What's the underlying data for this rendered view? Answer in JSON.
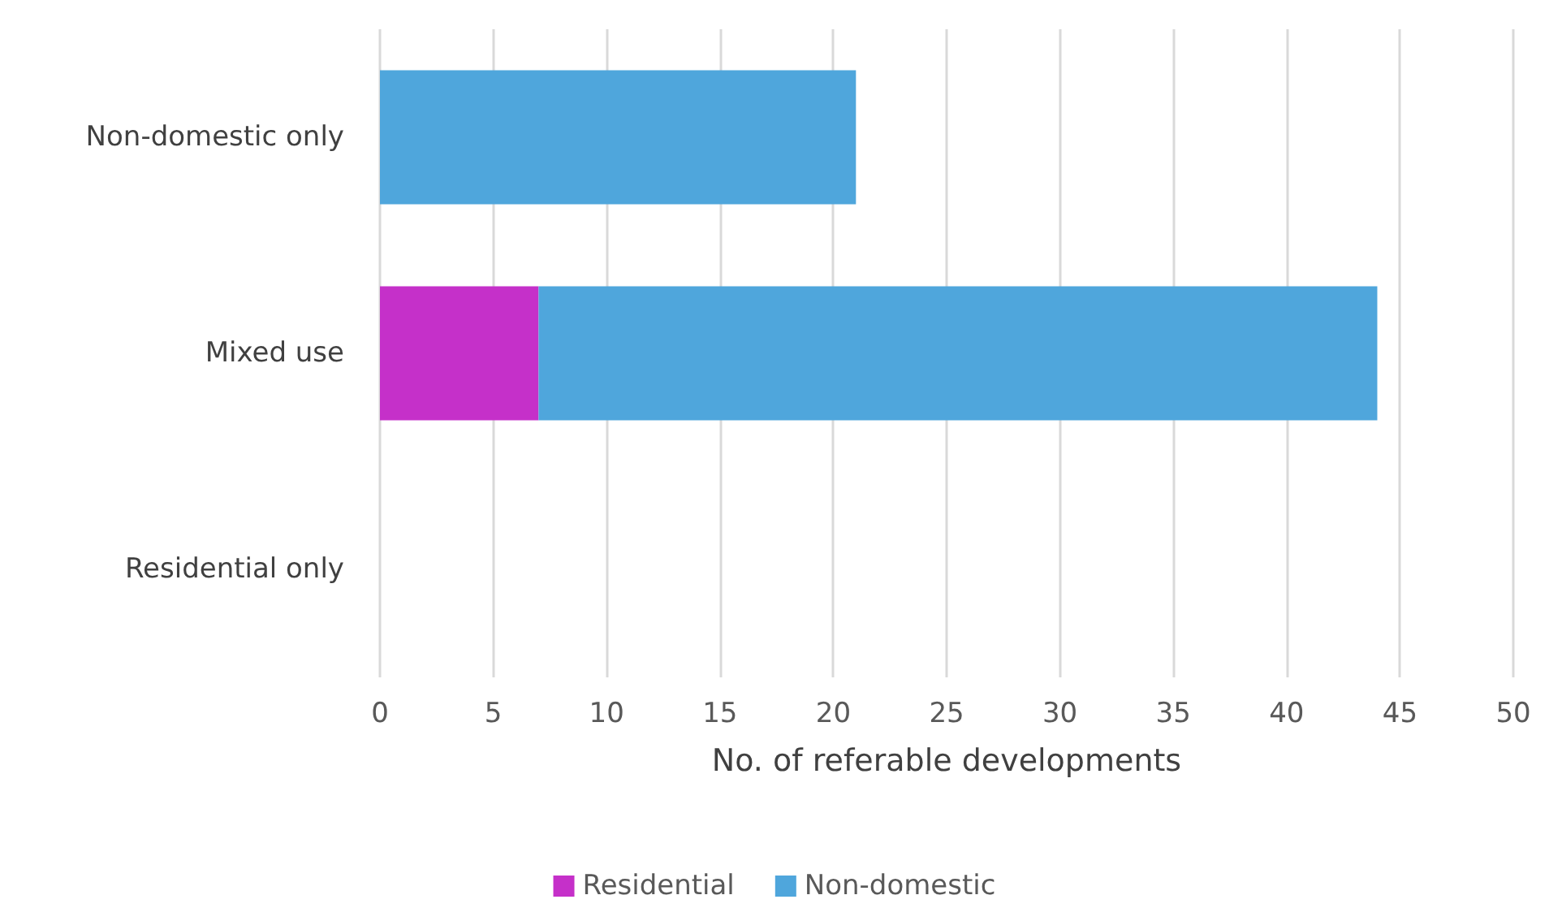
{
  "chart_data": {
    "type": "bar",
    "orientation": "horizontal",
    "stacked": true,
    "xlabel": "No. of referable developments",
    "categories": [
      "Non-domestic only",
      "Mixed use",
      "Residential only"
    ],
    "series": [
      {
        "name": "Residential",
        "color": "#c530c9",
        "values": [
          0,
          7,
          0
        ]
      },
      {
        "name": "Non-domestic",
        "color": "#4fa6dc",
        "values": [
          21,
          37,
          0
        ]
      }
    ],
    "xlim": [
      0,
      50
    ],
    "xticks": [
      0,
      5,
      10,
      15,
      20,
      25,
      30,
      35,
      40,
      45,
      50
    ],
    "grid": "x",
    "legend": "bottom"
  }
}
